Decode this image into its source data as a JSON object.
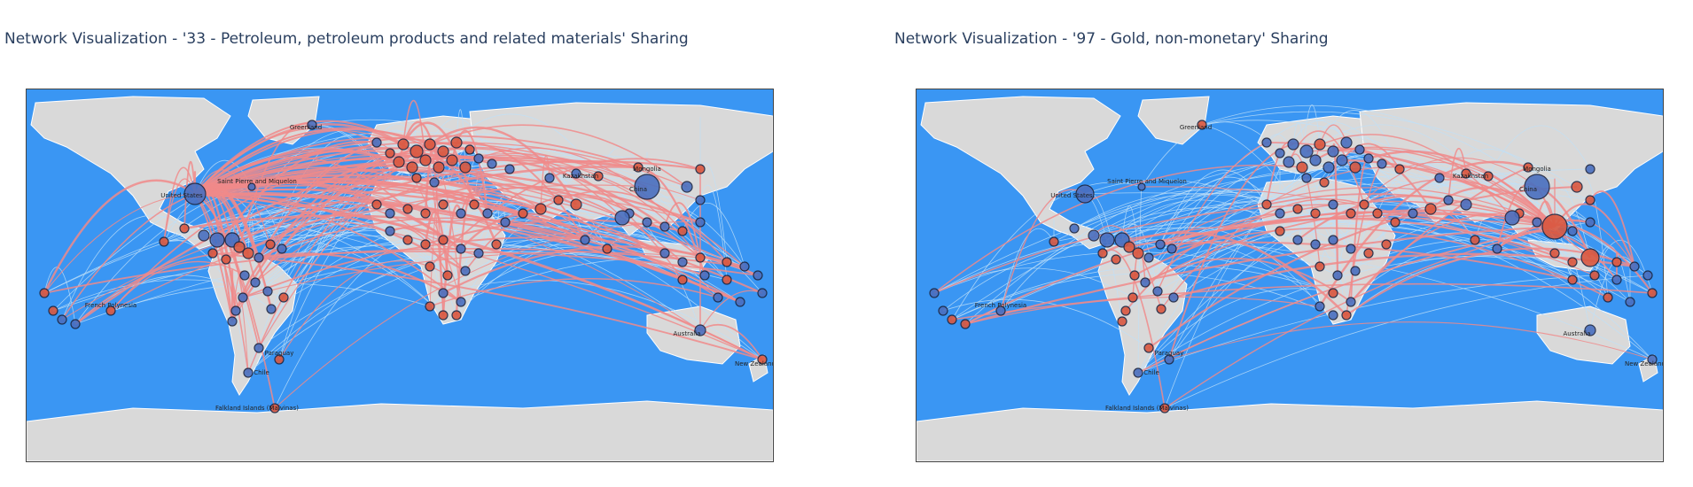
{
  "maps": [
    {
      "id": "petroleum",
      "title": "Network Visualization - '33 - Petroleum, petroleum products and related materials' Sharing",
      "edge_color": "#f08a8a",
      "faint_edge_color": "#bfe0f7",
      "hub": "United States",
      "labels": [
        "Greenland",
        "United States",
        "Saint Pierre and Miquelon",
        "China",
        "Mongolia",
        "Kazakhstan",
        "Australia",
        "New Zealand",
        "French Polynesia",
        "Falkland Islands (Malvinas)",
        "Paraguay",
        "Chile"
      ]
    },
    {
      "id": "gold",
      "title": "Network Visualization - '97 - Gold, non-monetary' Sharing",
      "edge_color": "#f08a8a",
      "faint_edge_color": "#bfe0f7",
      "hub": "China",
      "labels": [
        "Greenland",
        "United States",
        "Saint Pierre and Miquelon",
        "China",
        "Mongolia",
        "Kazakhstan",
        "Australia",
        "New Zealand",
        "French Polynesia",
        "Falkland Islands (Malvinas)",
        "Paraguay",
        "Chile"
      ]
    }
  ],
  "colors": {
    "ocean": "#3a96f3",
    "land": "#d9d9d9",
    "node_red": "#d9573f",
    "node_blue": "#4a6fbf",
    "node_outline": "#1c2540"
  }
}
